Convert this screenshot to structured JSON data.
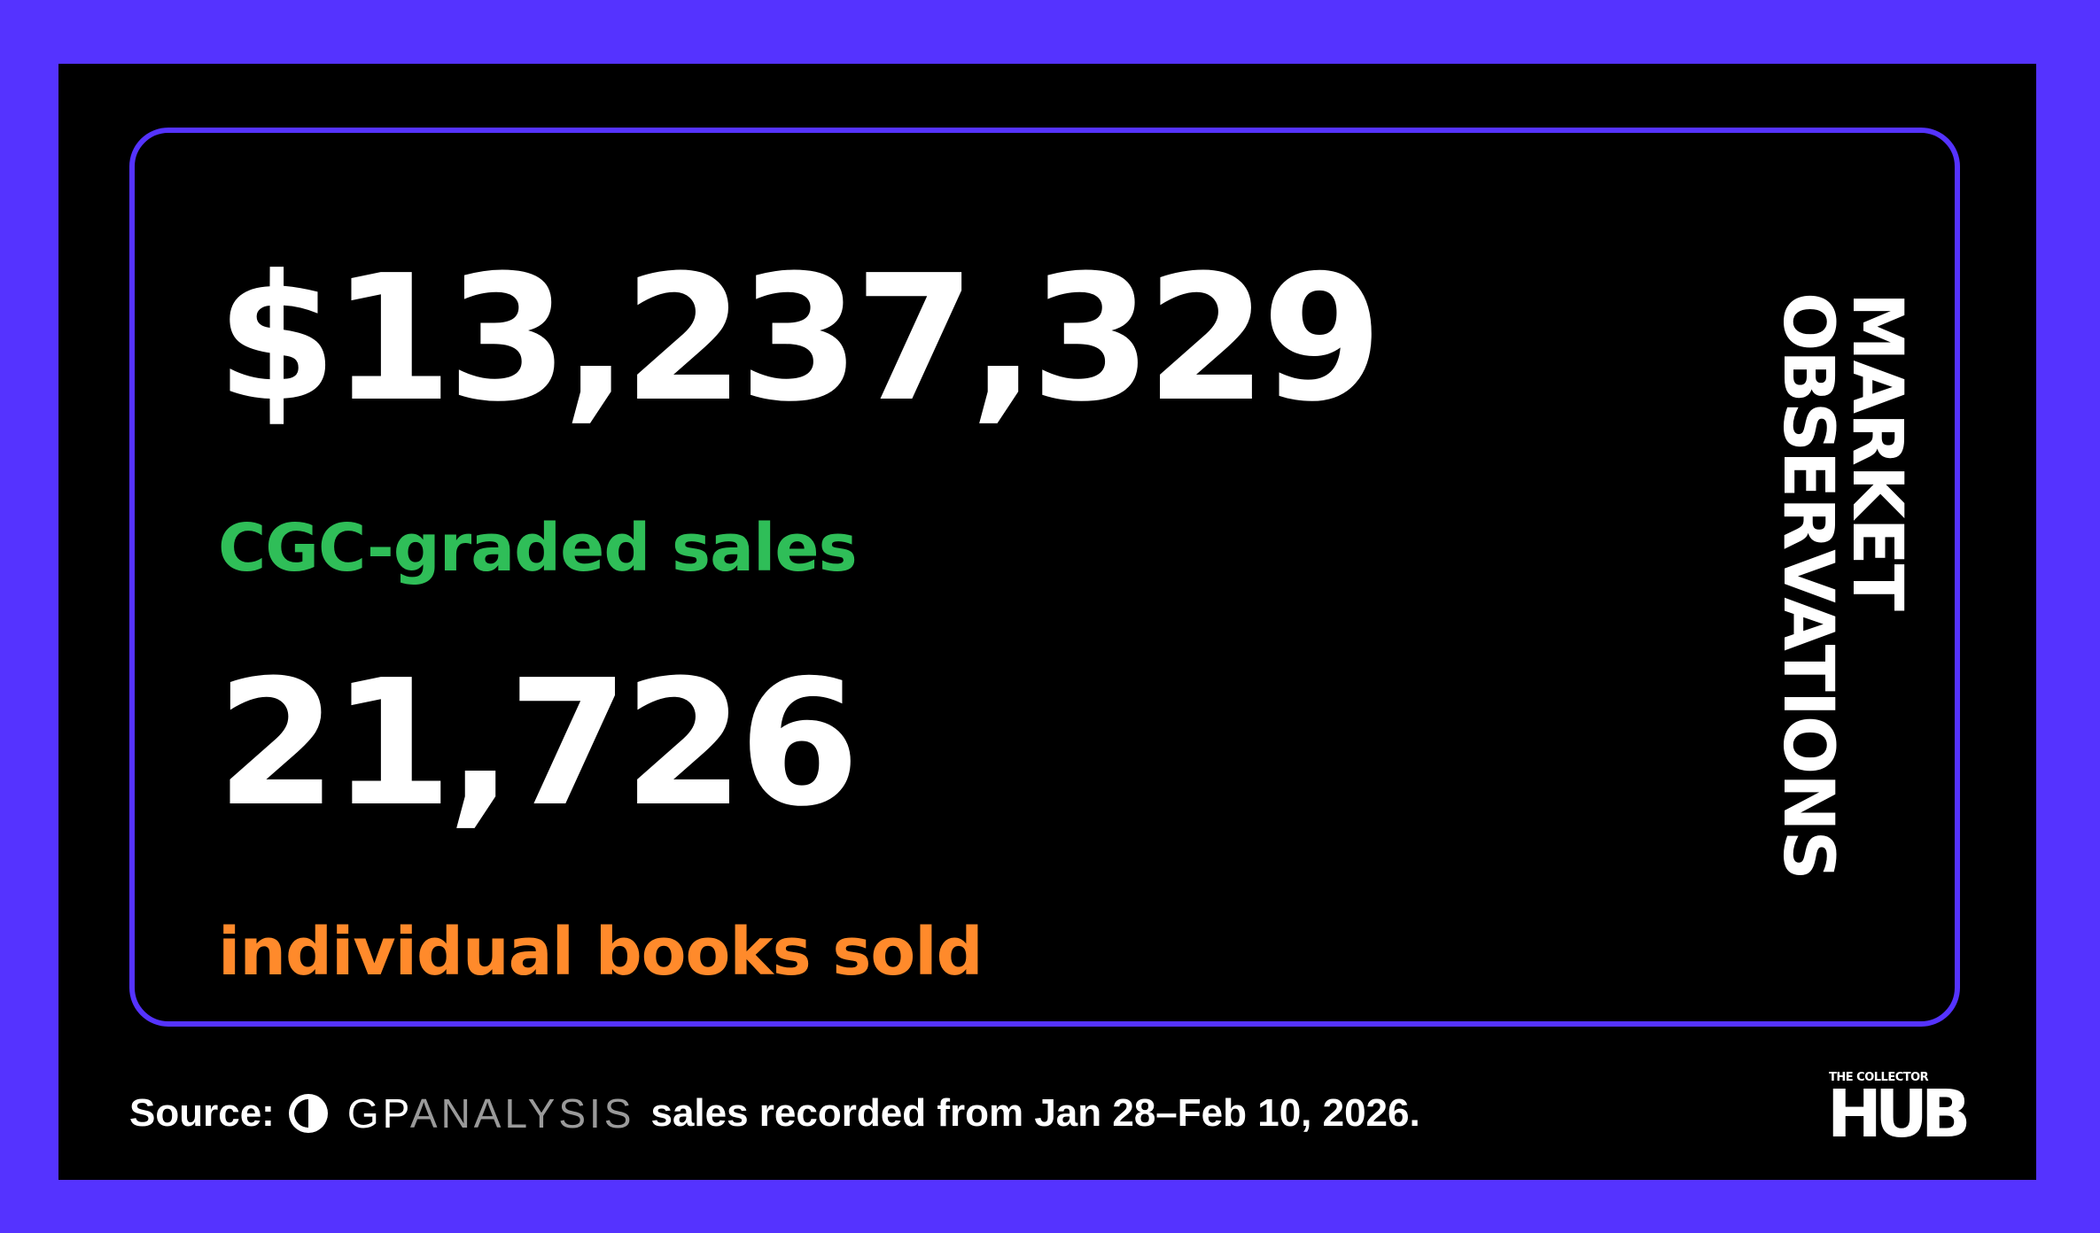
{
  "stats": [
    {
      "value": "$13,237,329",
      "label": "CGC-graded sales"
    },
    {
      "value": "21,726",
      "label": "individual books sold"
    }
  ],
  "side_title": {
    "line1": "MARKET",
    "line2": "OBSERVATIONS"
  },
  "footer": {
    "source_label": "Source:",
    "brand_gp": "GP",
    "brand_analysis": "ANALYSIS",
    "brand_icon": "gp-analysis-logo-icon",
    "text": "sales recorded from Jan 28–Feb 10, 2026."
  },
  "logo": {
    "top": "THE COLLECTOR",
    "word": "HUB"
  },
  "colors": {
    "frame": "#5533ff",
    "background": "#000000",
    "sales_label": "#2fbe58",
    "books_label": "#ff8a2b",
    "text": "#ffffff"
  }
}
